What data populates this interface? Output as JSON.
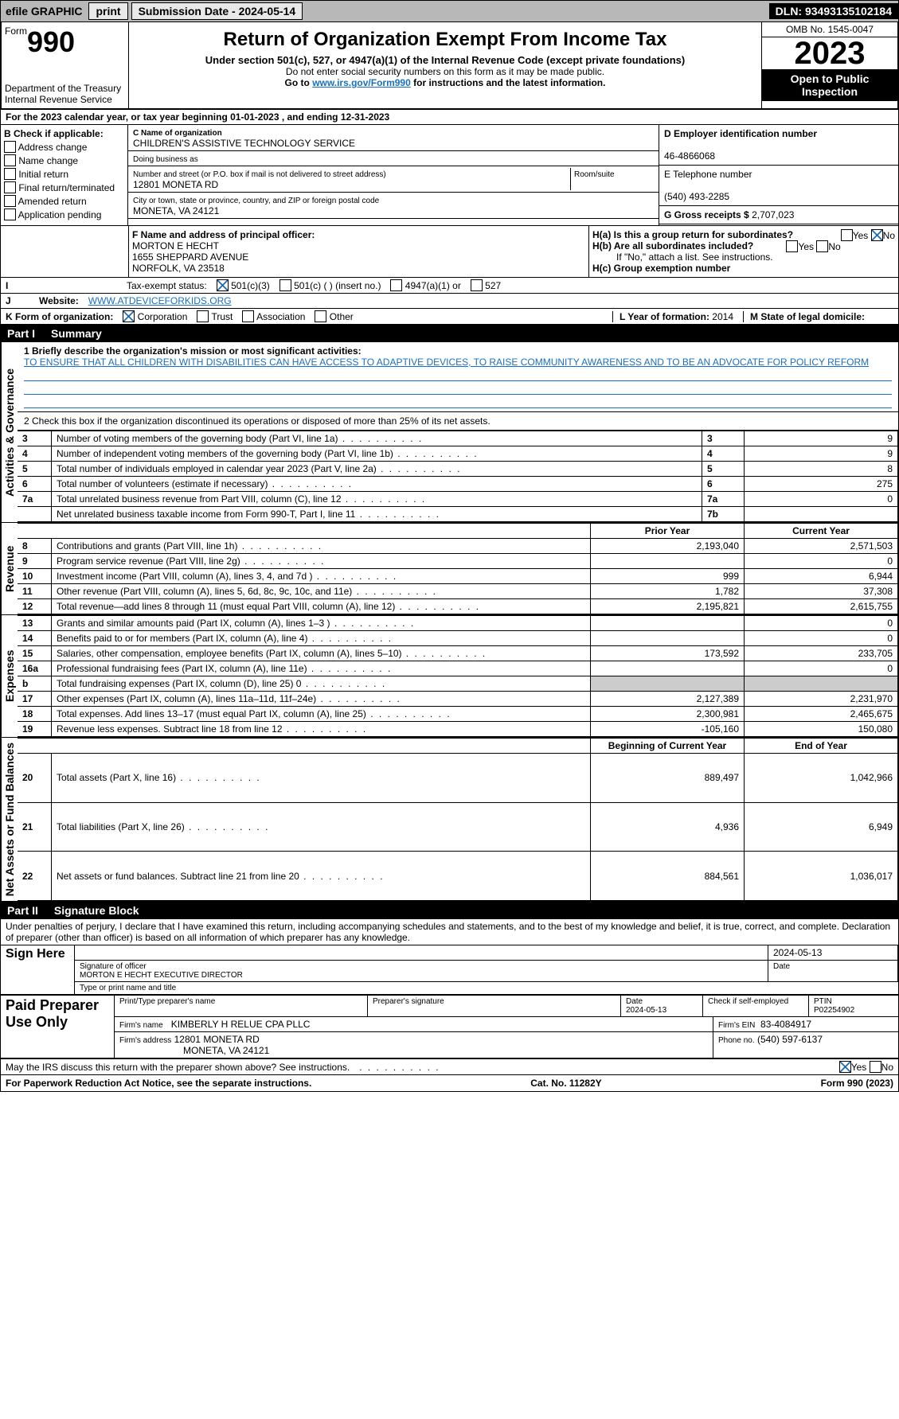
{
  "topbar": {
    "efile": "efile GRAPHIC",
    "print": "print",
    "submission": "Submission Date - 2024-05-14",
    "dln": "DLN: 93493135102184"
  },
  "header": {
    "form_word": "Form",
    "form_num": "990",
    "title": "Return of Organization Exempt From Income Tax",
    "subtitle": "Under section 501(c), 527, or 4947(a)(1) of the Internal Revenue Code (except private foundations)",
    "note1": "Do not enter social security numbers on this form as it may be made public.",
    "note2_prefix": "Go to ",
    "note2_link": "www.irs.gov/Form990",
    "note2_suffix": " for instructions and the latest information.",
    "dept": "Department of the Treasury",
    "irs": "Internal Revenue Service",
    "omb": "OMB No. 1545-0047",
    "year": "2023",
    "open": "Open to Public Inspection"
  },
  "lineA": "For the 2023 calendar year, or tax year beginning 01-01-2023   , and ending 12-31-2023",
  "boxB": {
    "label": "B Check if applicable:",
    "items": [
      "Address change",
      "Name change",
      "Initial return",
      "Final return/terminated",
      "Amended return",
      "Application pending"
    ]
  },
  "boxC": {
    "label_name": "C Name of organization",
    "name": "CHILDREN'S ASSISTIVE TECHNOLOGY SERVICE",
    "dba": "Doing business as",
    "addr_label": "Number and street (or P.O. box if mail is not delivered to street address)",
    "addr": "12801 MONETA RD",
    "room": "Room/suite",
    "city_label": "City or town, state or province, country, and ZIP or foreign postal code",
    "city": "MONETA, VA  24121"
  },
  "boxD": {
    "label": "D Employer identification number",
    "val": "46-4866068"
  },
  "boxE": {
    "label": "E Telephone number",
    "val": "(540) 493-2285"
  },
  "boxG": {
    "label": "G Gross receipts $",
    "val": "2,707,023"
  },
  "boxF": {
    "label": "F  Name and address of principal officer:",
    "name": "MORTON E HECHT",
    "street": "1655 SHEPPARD AVENUE",
    "city": "NORFOLK, VA  23518"
  },
  "boxH": {
    "a": "H(a)  Is this a group return for subordinates?",
    "b": "H(b)  Are all subordinates included?",
    "b_note": "If \"No,\" attach a list. See instructions.",
    "c": "H(c)  Group exemption number",
    "yes": "Yes",
    "no": "No"
  },
  "lineI": {
    "label": "Tax-exempt status:",
    "o1": "501(c)(3)",
    "o2": "501(c) (  ) (insert no.)",
    "o3": "4947(a)(1) or",
    "o4": "527"
  },
  "lineJ": {
    "label": "Website:",
    "val": "WWW.ATDEVICEFORKIDS.ORG"
  },
  "lineK": {
    "label": "K Form of organization:",
    "c": "Corporation",
    "t": "Trust",
    "a": "Association",
    "o": "Other"
  },
  "lineL": {
    "label": "L Year of formation:",
    "val": "2014"
  },
  "lineM": {
    "label": "M State of legal domicile:"
  },
  "part1": {
    "num": "Part I",
    "title": "Summary"
  },
  "mission": {
    "label": "1  Briefly describe the organization's mission or most significant activities:",
    "text": "TO ENSURE THAT ALL CHILDREN WITH DISABILITIES CAN HAVE ACCESS TO ADAPTIVE DEVICES, TO RAISE COMMUNITY AWARENESS AND TO BE AN ADVOCATE FOR POLICY REFORM"
  },
  "line2": "2  Check this box      if the organization discontinued its operations or disposed of more than 25% of its net assets.",
  "gov": [
    {
      "n": "3",
      "t": "Number of voting members of the governing body (Part VI, line 1a)",
      "c": "3",
      "v": "9"
    },
    {
      "n": "4",
      "t": "Number of independent voting members of the governing body (Part VI, line 1b)",
      "c": "4",
      "v": "9"
    },
    {
      "n": "5",
      "t": "Total number of individuals employed in calendar year 2023 (Part V, line 2a)",
      "c": "5",
      "v": "8"
    },
    {
      "n": "6",
      "t": "Total number of volunteers (estimate if necessary)",
      "c": "6",
      "v": "275"
    },
    {
      "n": "7a",
      "t": "Total unrelated business revenue from Part VIII, column (C), line 12",
      "c": "7a",
      "v": "0"
    },
    {
      "n": "",
      "t": "Net unrelated business taxable income from Form 990-T, Part I, line 11",
      "c": "7b",
      "v": ""
    }
  ],
  "vtabs": {
    "gov": "Activities & Governance",
    "rev": "Revenue",
    "exp": "Expenses",
    "net": "Net Assets or Fund Balances"
  },
  "colhdr": {
    "prior": "Prior Year",
    "current": "Current Year"
  },
  "rev": [
    {
      "n": "8",
      "t": "Contributions and grants (Part VIII, line 1h)",
      "p": "2,193,040",
      "c": "2,571,503"
    },
    {
      "n": "9",
      "t": "Program service revenue (Part VIII, line 2g)",
      "p": "",
      "c": "0"
    },
    {
      "n": "10",
      "t": "Investment income (Part VIII, column (A), lines 3, 4, and 7d )",
      "p": "999",
      "c": "6,944"
    },
    {
      "n": "11",
      "t": "Other revenue (Part VIII, column (A), lines 5, 6d, 8c, 9c, 10c, and 11e)",
      "p": "1,782",
      "c": "37,308"
    },
    {
      "n": "12",
      "t": "Total revenue—add lines 8 through 11 (must equal Part VIII, column (A), line 12)",
      "p": "2,195,821",
      "c": "2,615,755"
    }
  ],
  "exp": [
    {
      "n": "13",
      "t": "Grants and similar amounts paid (Part IX, column (A), lines 1–3 )",
      "p": "",
      "c": "0"
    },
    {
      "n": "14",
      "t": "Benefits paid to or for members (Part IX, column (A), line 4)",
      "p": "",
      "c": "0"
    },
    {
      "n": "15",
      "t": "Salaries, other compensation, employee benefits (Part IX, column (A), lines 5–10)",
      "p": "173,592",
      "c": "233,705"
    },
    {
      "n": "16a",
      "t": "Professional fundraising fees (Part IX, column (A), line 11e)",
      "p": "",
      "c": "0"
    },
    {
      "n": "b",
      "t": "Total fundraising expenses (Part IX, column (D), line 25) 0",
      "p": "SHADE",
      "c": "SHADE"
    },
    {
      "n": "17",
      "t": "Other expenses (Part IX, column (A), lines 11a–11d, 11f–24e)",
      "p": "2,127,389",
      "c": "2,231,970"
    },
    {
      "n": "18",
      "t": "Total expenses. Add lines 13–17 (must equal Part IX, column (A), line 25)",
      "p": "2,300,981",
      "c": "2,465,675"
    },
    {
      "n": "19",
      "t": "Revenue less expenses. Subtract line 18 from line 12",
      "p": "-105,160",
      "c": "150,080"
    }
  ],
  "colhdr2": {
    "beg": "Beginning of Current Year",
    "end": "End of Year"
  },
  "net": [
    {
      "n": "20",
      "t": "Total assets (Part X, line 16)",
      "p": "889,497",
      "c": "1,042,966"
    },
    {
      "n": "21",
      "t": "Total liabilities (Part X, line 26)",
      "p": "4,936",
      "c": "6,949"
    },
    {
      "n": "22",
      "t": "Net assets or fund balances. Subtract line 21 from line 20",
      "p": "884,561",
      "c": "1,036,017"
    }
  ],
  "part2": {
    "num": "Part II",
    "title": "Signature Block"
  },
  "perjury": "Under penalties of perjury, I declare that I have examined this return, including accompanying schedules and statements, and to the best of my knowledge and belief, it is true, correct, and complete. Declaration of preparer (other than officer) is based on all information of which preparer has any knowledge.",
  "sign": {
    "here": "Sign Here",
    "sig_label": "Signature of officer",
    "date": "2024-05-13",
    "date_label": "Date",
    "name": "MORTON E HECHT  EXECUTIVE DIRECTOR",
    "name_label": "Type or print name and title"
  },
  "prep": {
    "title": "Paid Preparer Use Only",
    "name_label": "Print/Type preparer's name",
    "sig_label": "Preparer's signature",
    "date_label": "Date",
    "date": "2024-05-13",
    "check_label": "Check       if self-employed",
    "ptin_label": "PTIN",
    "ptin": "P02254902",
    "firm_label": "Firm's name",
    "firm": "KIMBERLY H RELUE CPA PLLC",
    "ein_label": "Firm's EIN",
    "ein": "83-4084917",
    "addr_label": "Firm's address",
    "addr1": "12801 MONETA RD",
    "addr2": "MONETA, VA  24121",
    "phone_label": "Phone no.",
    "phone": "(540) 597-6137"
  },
  "discuss": "May the IRS discuss this return with the preparer shown above? See instructions.",
  "footer": {
    "left": "For Paperwork Reduction Act Notice, see the separate instructions.",
    "mid": "Cat. No. 11282Y",
    "right": "Form 990 (2023)"
  }
}
